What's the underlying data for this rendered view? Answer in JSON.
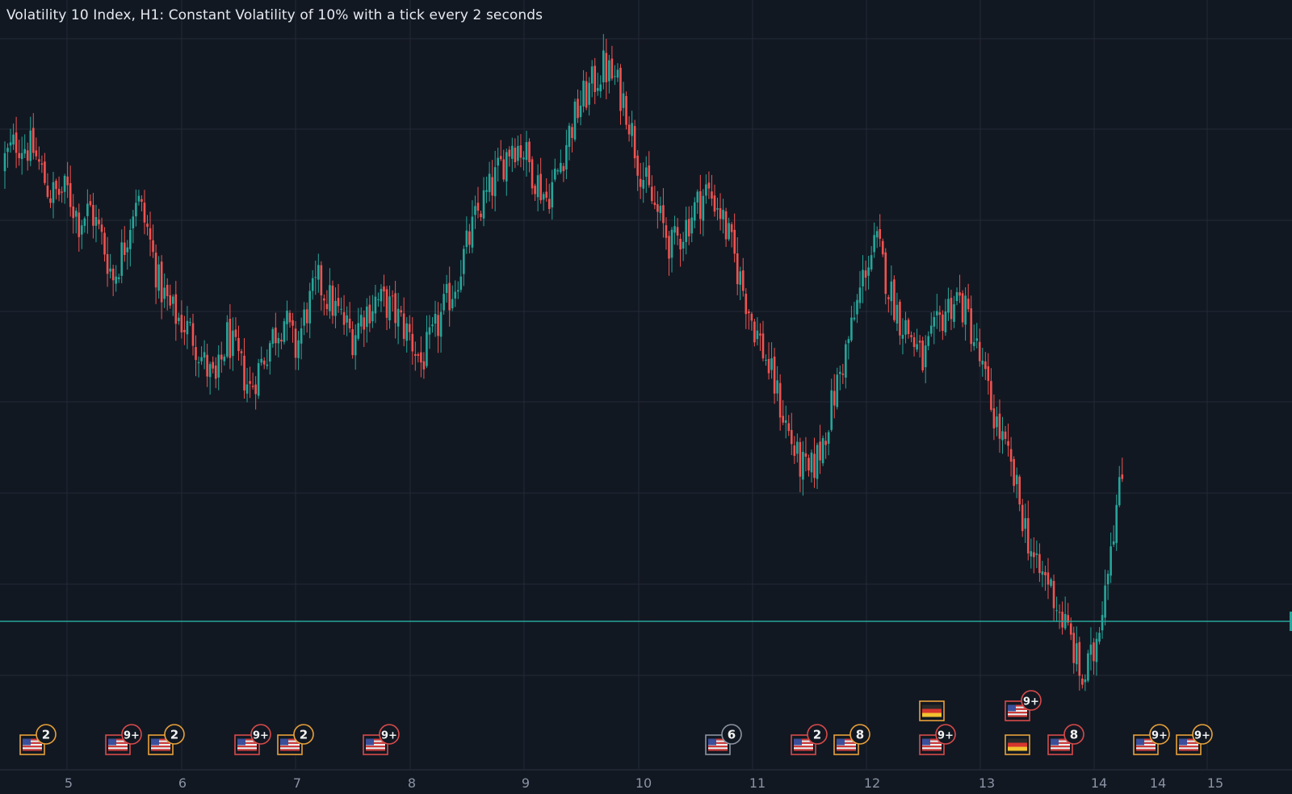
{
  "chart_data": {
    "type": "candlestick",
    "title": "Volatility 10 Index, H1: Constant Volatility of 10% with a tick every 2 seconds",
    "x_ticks": [
      "5",
      "6",
      "7",
      "8",
      "9",
      "10",
      "11",
      "12",
      "13",
      "14",
      "14",
      "15"
    ],
    "grid": true,
    "current_price_line": true,
    "colors": {
      "up": "#26a69a",
      "down": "#ef5350",
      "price_line": "#26a69a",
      "background": "#121822",
      "grid": "#232a36",
      "axis_text": "#8a93a4"
    },
    "close_path": [
      [
        0,
        1790
      ],
      [
        4,
        1800
      ],
      [
        10,
        1795
      ],
      [
        16,
        1770
      ],
      [
        22,
        1772
      ],
      [
        26,
        1755
      ],
      [
        30,
        1762
      ],
      [
        34,
        1745
      ],
      [
        38,
        1722
      ],
      [
        42,
        1742
      ],
      [
        46,
        1770
      ],
      [
        50,
        1750
      ],
      [
        54,
        1720
      ],
      [
        58,
        1705
      ],
      [
        62,
        1698
      ],
      [
        66,
        1690
      ],
      [
        70,
        1674
      ],
      [
        74,
        1662
      ],
      [
        78,
        1690
      ],
      [
        82,
        1675
      ],
      [
        86,
        1660
      ],
      [
        90,
        1675
      ],
      [
        94,
        1690
      ],
      [
        98,
        1700
      ],
      [
        102,
        1682
      ],
      [
        106,
        1705
      ],
      [
        110,
        1720
      ],
      [
        114,
        1710
      ],
      [
        118,
        1700
      ],
      [
        122,
        1690
      ],
      [
        126,
        1703
      ],
      [
        130,
        1710
      ],
      [
        134,
        1708
      ],
      [
        138,
        1700
      ],
      [
        142,
        1690
      ],
      [
        146,
        1675
      ],
      [
        150,
        1688
      ],
      [
        154,
        1705
      ],
      [
        158,
        1720
      ],
      [
        162,
        1740
      ],
      [
        166,
        1760
      ],
      [
        170,
        1772
      ],
      [
        174,
        1786
      ],
      [
        178,
        1800
      ],
      [
        182,
        1795
      ],
      [
        186,
        1780
      ],
      [
        190,
        1768
      ],
      [
        194,
        1783
      ],
      [
        198,
        1805
      ],
      [
        202,
        1822
      ],
      [
        206,
        1832
      ],
      [
        210,
        1842
      ],
      [
        214,
        1835
      ],
      [
        218,
        1820
      ],
      [
        222,
        1790
      ],
      [
        226,
        1770
      ],
      [
        230,
        1755
      ],
      [
        234,
        1740
      ],
      [
        238,
        1750
      ],
      [
        242,
        1762
      ],
      [
        246,
        1772
      ],
      [
        250,
        1765
      ],
      [
        254,
        1745
      ],
      [
        258,
        1722
      ],
      [
        262,
        1700
      ],
      [
        266,
        1682
      ],
      [
        270,
        1662
      ],
      [
        274,
        1640
      ],
      [
        278,
        1620
      ],
      [
        282,
        1610
      ],
      [
        286,
        1625
      ],
      [
        290,
        1650
      ],
      [
        294,
        1675
      ],
      [
        298,
        1700
      ],
      [
        302,
        1730
      ],
      [
        306,
        1742
      ],
      [
        310,
        1718
      ],
      [
        314,
        1700
      ],
      [
        318,
        1690
      ],
      [
        322,
        1675
      ],
      [
        326,
        1690
      ],
      [
        330,
        1705
      ],
      [
        334,
        1712
      ],
      [
        338,
        1700
      ],
      [
        342,
        1676
      ],
      [
        346,
        1651
      ],
      [
        350,
        1630
      ],
      [
        354,
        1608
      ],
      [
        358,
        1582
      ],
      [
        362,
        1556
      ],
      [
        366,
        1552
      ],
      [
        370,
        1534
      ],
      [
        374,
        1518
      ],
      [
        378,
        1494
      ],
      [
        382,
        1510
      ],
      [
        385,
        1540
      ],
      [
        388,
        1575
      ],
      [
        392,
        1610
      ]
    ]
  },
  "events": [
    {
      "count": "2",
      "style": "orange",
      "flag": "us-flag-icon"
    },
    {
      "count": "9+",
      "style": "red",
      "flag": "us-flag-icon"
    },
    {
      "count": "2",
      "style": "orange",
      "flag": "us-flag-icon"
    },
    {
      "count": "9+",
      "style": "red",
      "flag": "us-flag-icon"
    },
    {
      "count": "2",
      "style": "orange",
      "flag": "us-flag-icon"
    },
    {
      "count": "9+",
      "style": "red",
      "flag": "us-flag-icon"
    },
    {
      "count": "6",
      "style": "gray",
      "flag": "us-flag-icon"
    },
    {
      "count": "2",
      "style": "red",
      "flag": "us-flag-icon"
    },
    {
      "count": "8",
      "style": "orange",
      "flag": "us-flag-icon"
    },
    {
      "count": "",
      "style": "orange",
      "flag": "de-flag-icon"
    },
    {
      "count": "9+",
      "style": "red",
      "flag": "us-flag-icon"
    },
    {
      "count": "9+",
      "style": "red",
      "flag": "us-flag-icon"
    },
    {
      "count": "",
      "style": "orange",
      "flag": "de-flag-icon"
    },
    {
      "count": "8",
      "style": "red",
      "flag": "us-flag-icon"
    },
    {
      "count": "9+",
      "style": "orange",
      "flag": "us-flag-icon"
    },
    {
      "count": "9+",
      "style": "orange",
      "flag": "us-flag-icon"
    }
  ]
}
